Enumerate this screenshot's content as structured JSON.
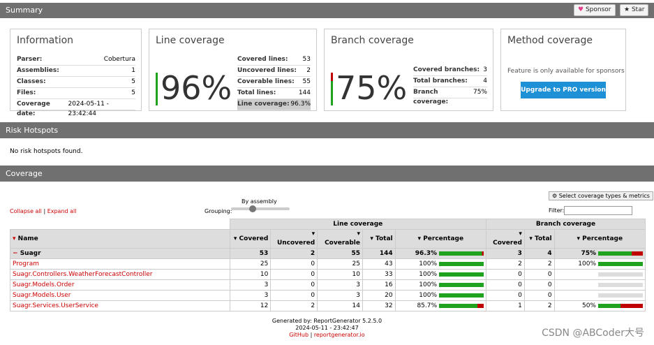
{
  "header": {
    "title": "Summary",
    "sponsor_label": "Sponsor",
    "star_label": "Star"
  },
  "information": {
    "title": "Information",
    "rows": [
      {
        "k": "Parser:",
        "v": "Cobertura"
      },
      {
        "k": "Assemblies:",
        "v": "1"
      },
      {
        "k": "Classes:",
        "v": "5"
      },
      {
        "k": "Files:",
        "v": "5"
      },
      {
        "k": "Coverage date:",
        "v": "2024-05-11 - 23:42:44"
      }
    ]
  },
  "line_coverage": {
    "title": "Line coverage",
    "percent": "96%",
    "rows": [
      {
        "k": "Covered lines:",
        "v": "53"
      },
      {
        "k": "Uncovered lines:",
        "v": "2"
      },
      {
        "k": "Coverable lines:",
        "v": "55"
      },
      {
        "k": "Total lines:",
        "v": "144"
      },
      {
        "k": "Line coverage:",
        "v": "96.3%"
      }
    ]
  },
  "branch_coverage": {
    "title": "Branch coverage",
    "percent": "75%",
    "rows": [
      {
        "k": "Covered branches:",
        "v": "3"
      },
      {
        "k": "Total branches:",
        "v": "4"
      },
      {
        "k": "Branch coverage:",
        "v": "75%"
      }
    ]
  },
  "method_coverage": {
    "title": "Method coverage",
    "note": "Feature is only available for sponsors",
    "upgrade_label": "Upgrade to PRO version"
  },
  "hotspots": {
    "title": "Risk Hotspots",
    "message": "No risk hotspots found."
  },
  "coverage": {
    "title": "Coverage",
    "collapse_label": "Collapse all",
    "expand_label": "Expand all",
    "grouping_caption": "By assembly",
    "grouping_label": "Grouping:",
    "select_types_label": "Select coverage types & metrics",
    "filter_label": "Filter:",
    "group_line": "Line coverage",
    "group_branch": "Branch coverage",
    "cols": {
      "name": "Name",
      "covered": "Covered",
      "uncovered": "Uncovered",
      "coverable": "Coverable",
      "total": "Total",
      "percentage": "Percentage",
      "b_covered": "Covered",
      "b_total": "Total",
      "b_percentage": "Percentage"
    },
    "assembly": {
      "name": "Suagr",
      "covered": "53",
      "uncovered": "2",
      "coverable": "55",
      "total": "144",
      "pct": "96.3%",
      "pct_val": 96.3,
      "b_covered": "3",
      "b_total": "4",
      "b_pct": "75%",
      "b_pct_val": 75
    },
    "rows": [
      {
        "name": "Program",
        "covered": "25",
        "uncovered": "0",
        "coverable": "25",
        "total": "43",
        "pct": "100%",
        "pct_val": 100,
        "b_covered": "2",
        "b_total": "2",
        "b_pct": "100%",
        "b_pct_val": 100
      },
      {
        "name": "Suagr.Controllers.WeatherForecastController",
        "covered": "10",
        "uncovered": "0",
        "coverable": "10",
        "total": "33",
        "pct": "100%",
        "pct_val": 100,
        "b_covered": "0",
        "b_total": "0",
        "b_pct": "",
        "b_pct_val": null
      },
      {
        "name": "Suagr.Models.Order",
        "covered": "3",
        "uncovered": "0",
        "coverable": "3",
        "total": "16",
        "pct": "100%",
        "pct_val": 100,
        "b_covered": "0",
        "b_total": "0",
        "b_pct": "",
        "b_pct_val": null
      },
      {
        "name": "Suagr.Models.User",
        "covered": "3",
        "uncovered": "0",
        "coverable": "3",
        "total": "20",
        "pct": "100%",
        "pct_val": 100,
        "b_covered": "0",
        "b_total": "0",
        "b_pct": "",
        "b_pct_val": null
      },
      {
        "name": "Suagr.Services.UserService",
        "covered": "12",
        "uncovered": "2",
        "coverable": "14",
        "total": "32",
        "pct": "85.7%",
        "pct_val": 85.7,
        "b_covered": "1",
        "b_total": "2",
        "b_pct": "50%",
        "b_pct_val": 50
      }
    ]
  },
  "footer": {
    "generated_by": "Generated by: ReportGenerator 5.2.5.0",
    "date": "2024-05-11 - 23:42:47",
    "github": "GitHub",
    "sep": " | ",
    "site": "reportgenerator.io"
  },
  "watermark": "CSDN @ABCoder大号",
  "colors": {
    "green": "#1fa31f",
    "red": "#c00000",
    "empty": "#ddd",
    "upgrade": "#1e90d6"
  }
}
